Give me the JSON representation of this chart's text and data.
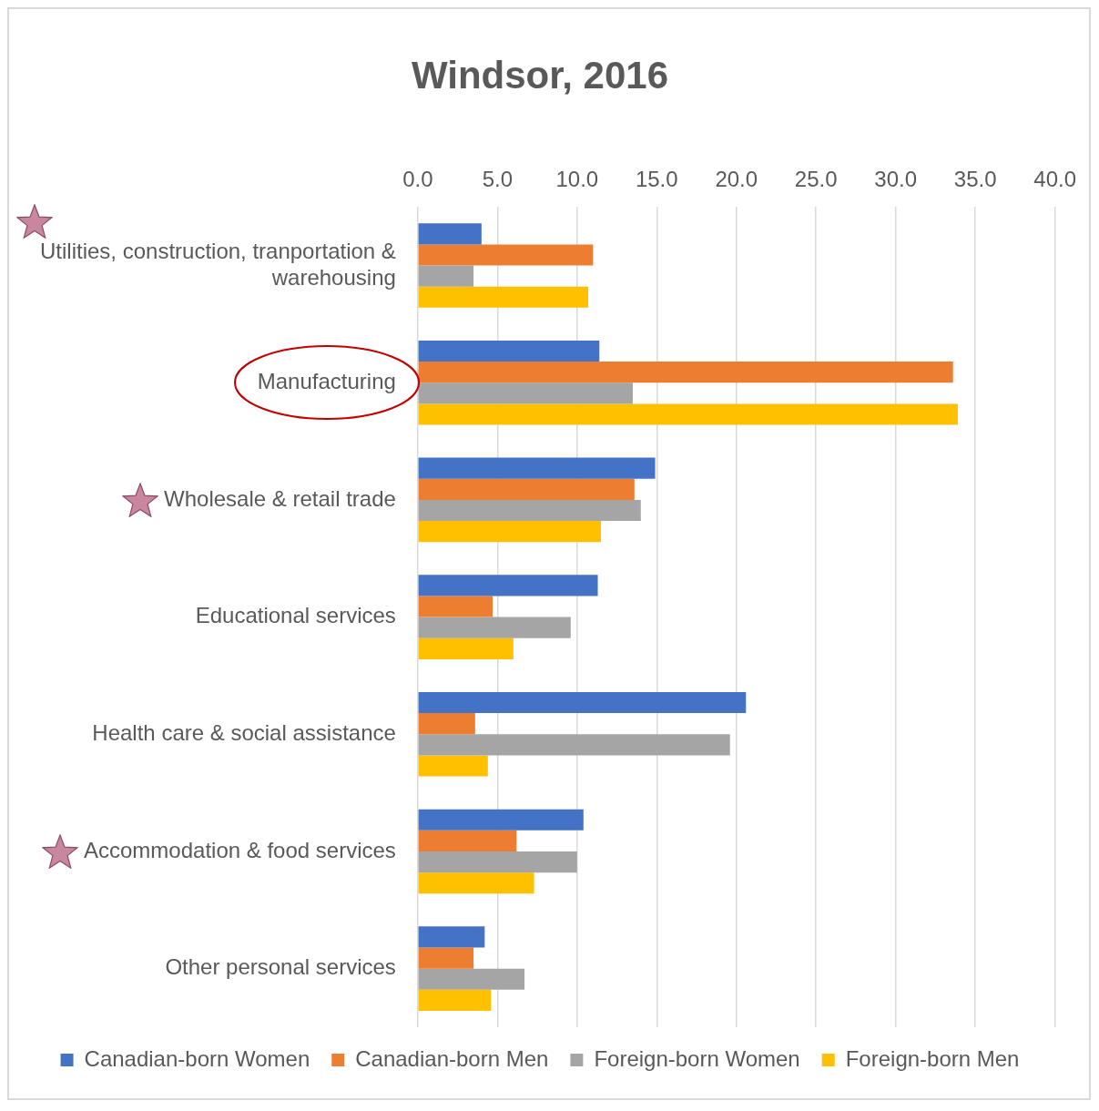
{
  "chart_data": {
    "type": "bar",
    "orientation": "horizontal",
    "title": "Windsor, 2016",
    "categories": [
      "Utilities, construction, tranportation & warehousing",
      "Manufacturing",
      "Wholesale & retail trade",
      "Educational services",
      "Health care & social assistance",
      "Accommodation & food services",
      "Other personal services"
    ],
    "series": [
      {
        "name": "Canadian-born Women",
        "color": "#4472c4",
        "values": [
          4.0,
          11.4,
          14.9,
          11.3,
          20.6,
          10.4,
          4.2
        ]
      },
      {
        "name": "Canadian-born Men",
        "color": "#ed7d31",
        "values": [
          11.0,
          33.6,
          13.6,
          4.7,
          3.6,
          6.2,
          3.5
        ]
      },
      {
        "name": "Foreign-born Women",
        "color": "#a5a5a5",
        "values": [
          3.5,
          13.5,
          14.0,
          9.6,
          19.6,
          10.0,
          6.7
        ]
      },
      {
        "name": "Foreign-born Men",
        "color": "#ffc000",
        "values": [
          10.7,
          33.9,
          11.5,
          6.0,
          4.4,
          7.3,
          4.6
        ]
      }
    ],
    "xlim": [
      0,
      40
    ],
    "xticks": [
      {
        "value": 0,
        "label": "0.0"
      },
      {
        "value": 5,
        "label": "5.0"
      },
      {
        "value": 10,
        "label": "10.0"
      },
      {
        "value": 15,
        "label": "15.0"
      },
      {
        "value": 20,
        "label": "20.0"
      },
      {
        "value": 25,
        "label": "25.0"
      },
      {
        "value": 30,
        "label": "30.0"
      },
      {
        "value": 35,
        "label": "35.0"
      },
      {
        "value": 40,
        "label": "40.0"
      }
    ],
    "grid": "x",
    "legend": "bottom"
  }
}
